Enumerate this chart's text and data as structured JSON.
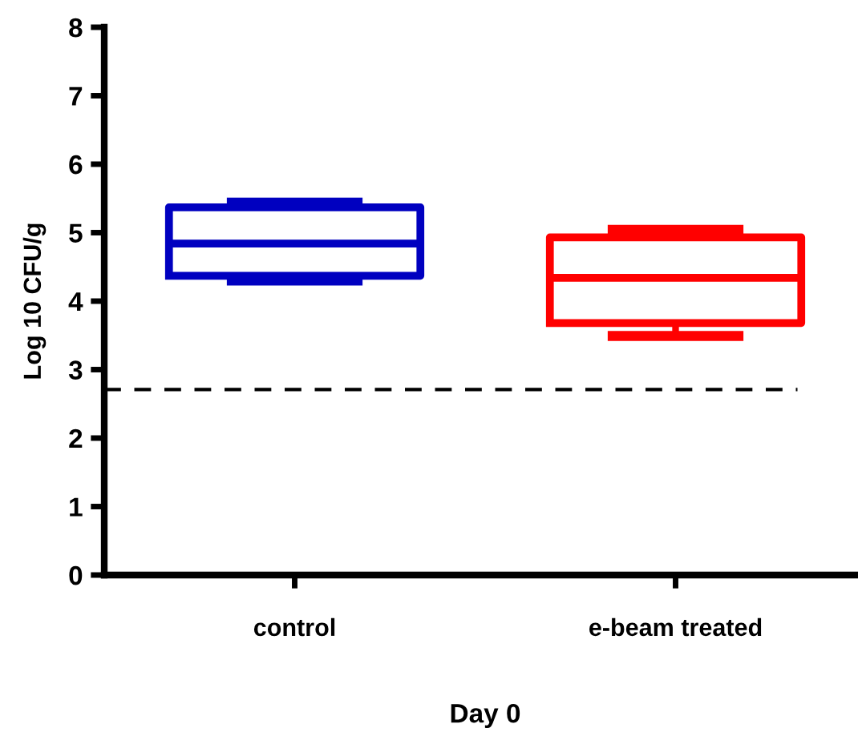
{
  "chart_data": {
    "type": "box",
    "xlabel": "Day 0",
    "ylabel": "Log 10 CFU/g",
    "categories": [
      "control",
      "e-beam treated"
    ],
    "series": [
      {
        "color": "#0000c0",
        "boxes": [
          {
            "low": 4.3,
            "q1": 4.37,
            "median": 4.84,
            "q3": 5.37,
            "high": 5.44
          },
          null
        ]
      },
      {
        "color": "#ff0000",
        "boxes": [
          null,
          {
            "low": 3.49,
            "q1": 3.68,
            "median": 4.34,
            "q3": 4.93,
            "high": 5.04
          }
        ]
      }
    ],
    "ylim": [
      0,
      8
    ],
    "yticks": [
      0,
      1,
      2,
      3,
      4,
      5,
      6,
      7,
      8
    ],
    "grid": false,
    "legend": false,
    "ref_lines": [
      {
        "axis": "y",
        "value": 2.71,
        "color": "#000000",
        "line_style": "dashed"
      }
    ]
  }
}
